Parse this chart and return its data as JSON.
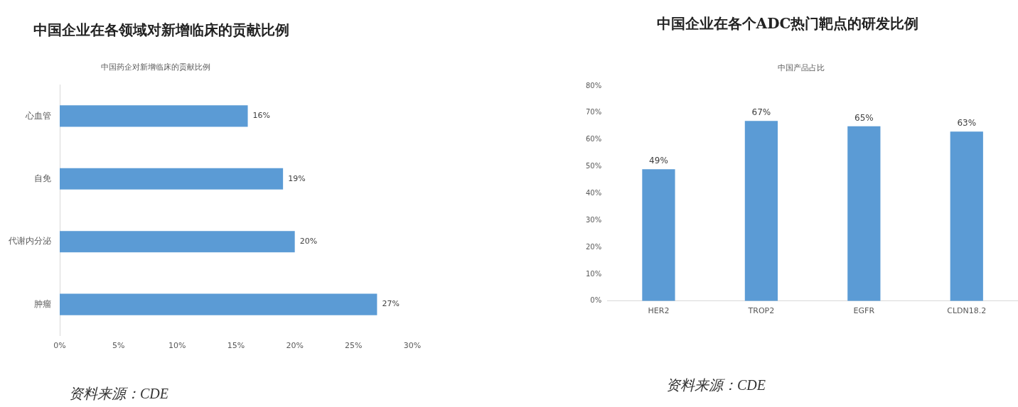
{
  "chart_data": [
    {
      "type": "bar",
      "orientation": "horizontal",
      "title": "中国企业在各领域对新增临床的贡献比例",
      "subtitle": "中国药企对新增临床的贡献比例",
      "categories": [
        "心血管",
        "自免",
        "代谢内分泌",
        "肿瘤"
      ],
      "values": [
        16,
        19,
        20,
        27
      ],
      "value_labels": [
        "16%",
        "19%",
        "20%",
        "27%"
      ],
      "color": "#5b9bd5",
      "xlim": [
        0,
        30
      ],
      "xticks": [
        {
          "value": 0,
          "label": "0%"
        },
        {
          "value": 5,
          "label": "5%"
        },
        {
          "value": 10,
          "label": "10%"
        },
        {
          "value": 15,
          "label": "15%"
        },
        {
          "value": 20,
          "label": "20%"
        },
        {
          "value": 25,
          "label": "25%"
        },
        {
          "value": 30,
          "label": "30%"
        }
      ],
      "annotations": [
        "资料来源：CDE"
      ]
    },
    {
      "type": "bar",
      "title": "中国企业在各个ADC热门靶点的研发比例",
      "subtitle": "中国产品占比",
      "categories": [
        "HER2",
        "TROP2",
        "EGFR",
        "CLDN18.2"
      ],
      "values": [
        49,
        67,
        65,
        63
      ],
      "value_labels": [
        "49%",
        "67%",
        "65%",
        "63%"
      ],
      "color": "#5b9bd5",
      "ylim": [
        0,
        80
      ],
      "yticks": [
        {
          "value": 0,
          "label": "0%"
        },
        {
          "value": 10,
          "label": "10%"
        },
        {
          "value": 20,
          "label": "20%"
        },
        {
          "value": 30,
          "label": "30%"
        },
        {
          "value": 40,
          "label": "40%"
        },
        {
          "value": 50,
          "label": "50%"
        },
        {
          "value": 60,
          "label": "60%"
        },
        {
          "value": 70,
          "label": "70%"
        },
        {
          "value": 80,
          "label": "80%"
        }
      ],
      "annotations": [
        "资料来源：CDE"
      ]
    }
  ]
}
